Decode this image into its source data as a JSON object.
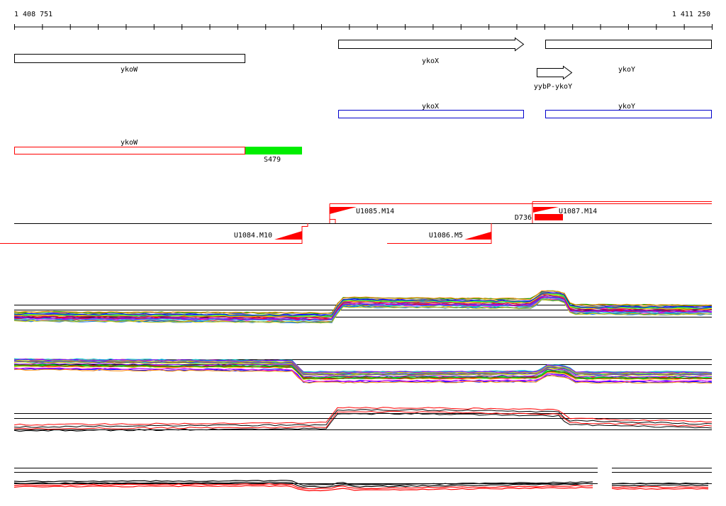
{
  "coordinates": {
    "start_label": "1 408 751",
    "end_label": "1 411 250"
  },
  "colors": {
    "gene_outline": "#000000",
    "transcript_outline": "#0000cc",
    "feature_outline": "#ff0000",
    "feature_fill": "#ff0000",
    "highlight_fill": "#00ee00",
    "axis": "#000000"
  },
  "genes": {
    "ykoW": "ykoW",
    "ykoX": "ykoX",
    "ykoY": "ykoY",
    "yybP_ykoY": "yybP-ykoY"
  },
  "transcripts": {
    "ykoX": "ykoX",
    "ykoY": "ykoY"
  },
  "red_track": {
    "ykoW": "ykoW",
    "S479": "S479"
  },
  "segments": {
    "U1085_M14": "U1085.M14",
    "U1087_M14": "U1087.M14",
    "D736": "D736",
    "U1084_M10": "U1084.M10",
    "U1086_M5": "U1086.M5"
  },
  "profile_palette": [
    "#ff0000",
    "#00aa00",
    "#0000ff",
    "#ff00ff",
    "#00cccc",
    "#cccc00",
    "#ff8800",
    "#8800ff",
    "#008888",
    "#888800",
    "#ff6699",
    "#66cc00",
    "#0066ff",
    "#996633",
    "#cc0066",
    "#33cc99",
    "#999999",
    "#6633cc",
    "#ffcc00",
    "#00ff66"
  ]
}
